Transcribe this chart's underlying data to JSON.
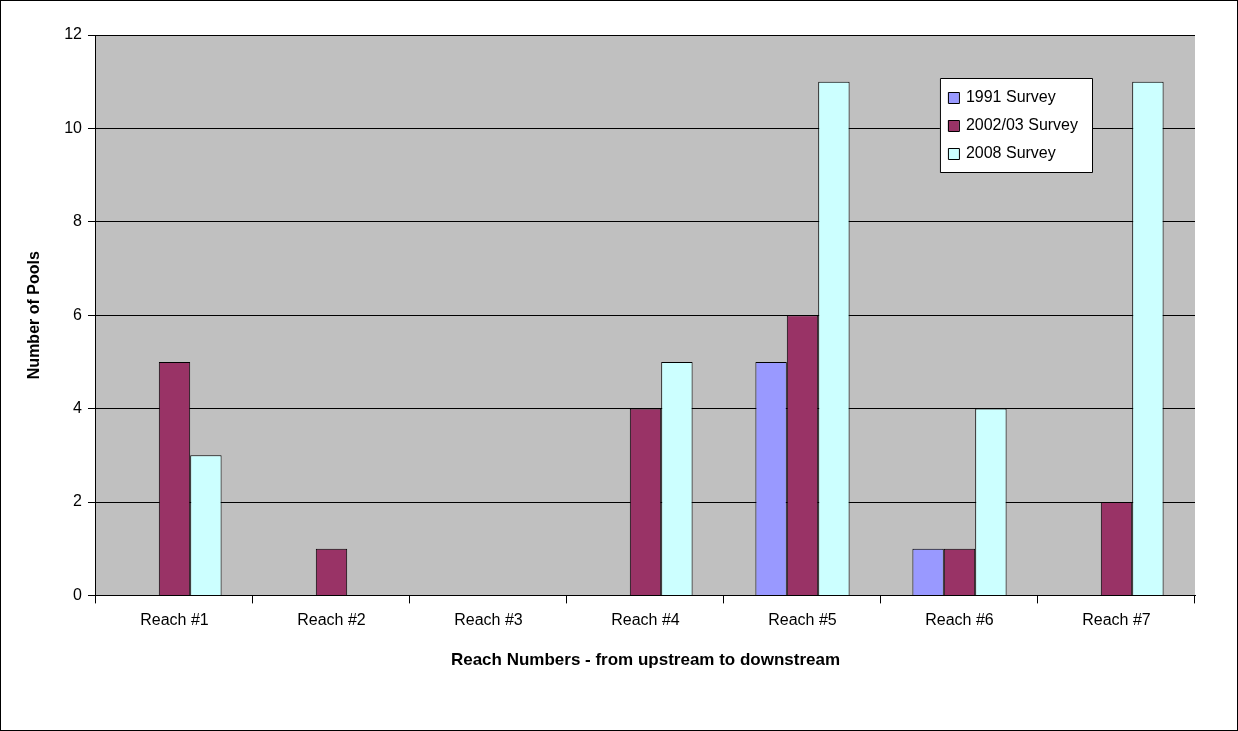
{
  "chart_data": {
    "type": "bar",
    "xlabel": "Reach Numbers - from upstream to downstream",
    "ylabel": "Number of Pools",
    "categories": [
      "Reach #1",
      "Reach #2",
      "Reach #3",
      "Reach #4",
      "Reach #5",
      "Reach #6",
      "Reach #7"
    ],
    "series": [
      {
        "name": "1991 Survey",
        "color": "#9999ff",
        "values": [
          0,
          0,
          0,
          0,
          5,
          1,
          0
        ]
      },
      {
        "name": "2002/03 Survey",
        "color": "#993366",
        "values": [
          5,
          1,
          0,
          4,
          6,
          1,
          2
        ]
      },
      {
        "name": "2008 Survey",
        "color": "#ccffff",
        "values": [
          3,
          0,
          0,
          5,
          11,
          4,
          11
        ]
      }
    ],
    "ylim": [
      0,
      12
    ],
    "yticks": [
      0,
      2,
      4,
      6,
      8,
      10,
      12
    ],
    "grid": "y",
    "legend": "top right"
  }
}
